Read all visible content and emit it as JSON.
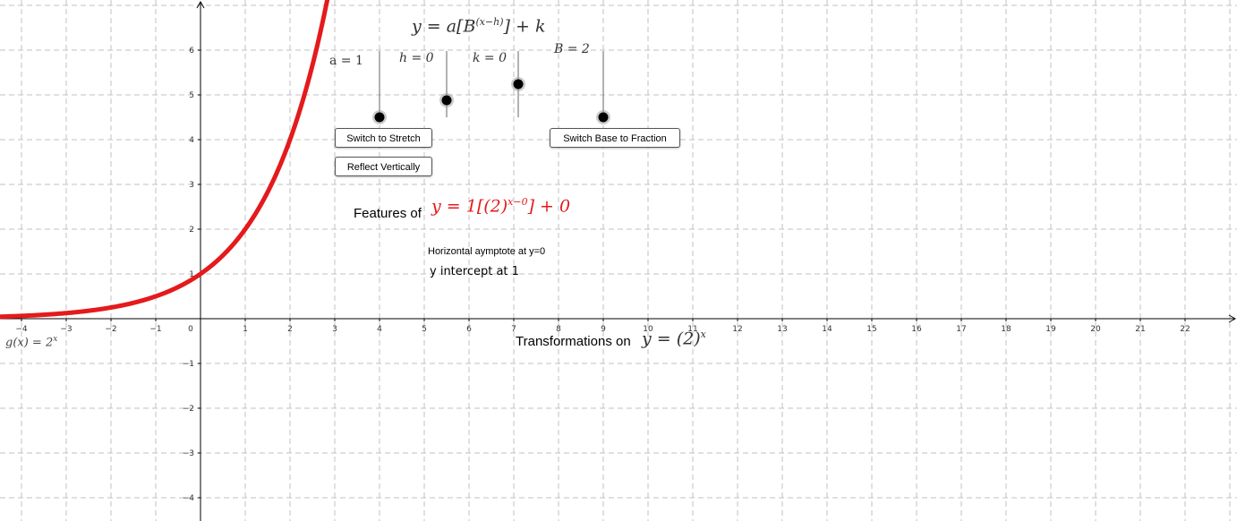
{
  "formula_title": {
    "prefix": "y = a[B",
    "exponent": "(x−h)",
    "suffix": "] + k"
  },
  "sliders": [
    {
      "name": "a",
      "label": "a = 1",
      "value": 1
    },
    {
      "name": "h",
      "label": "h = 0",
      "value": 0
    },
    {
      "name": "k",
      "label": "k = 0",
      "value": 0
    },
    {
      "name": "B",
      "label": "B = 2",
      "value": 2
    }
  ],
  "buttons": {
    "stretch": "Switch to Stretch",
    "reflect": "Reflect Vertically",
    "base_fraction": "Switch Base to Fraction"
  },
  "features": {
    "label": "Features of",
    "eq_prefix": "y = 1[(2)",
    "eq_exponent": "x−0",
    "eq_suffix": "] + 0",
    "asymptote": "Horizontal aymptote at y=0",
    "intercept": "y intercept at 1"
  },
  "transformations": {
    "label": "Transformations on",
    "eq_prefix": "y = (2)",
    "eq_exponent": "x"
  },
  "function_label": {
    "text": "g(x)  =  2",
    "exponent": "x"
  },
  "colors": {
    "curve": "#e41a1c",
    "grid": "#c0c0c0",
    "axis": "#000000",
    "slider_point": "#000000"
  },
  "chart_data": {
    "type": "line",
    "function": "g(x) = 2^x",
    "xlim": [
      -4.5,
      23.1
    ],
    "ylim": [
      -4.5,
      7.1
    ],
    "x_ticks": [
      -4,
      -3,
      -2,
      -1,
      0,
      1,
      2,
      3,
      4,
      5,
      6,
      7,
      8,
      9,
      10,
      11,
      12,
      13,
      14,
      15,
      16,
      17,
      18,
      19,
      20,
      21,
      22
    ],
    "y_ticks": [
      -4,
      -3,
      -2,
      -1,
      1,
      2,
      3,
      4,
      5,
      6
    ],
    "x_tick_labels": [
      "−4",
      "−3",
      "−2",
      "−1",
      "0",
      "1",
      "2",
      "3",
      "4",
      "5",
      "6",
      "7",
      "8",
      "9",
      "10",
      "11",
      "12",
      "13",
      "14",
      "15",
      "16",
      "17",
      "18",
      "19",
      "20",
      "21",
      "22"
    ],
    "y_tick_labels": [
      "−4",
      "−3",
      "−2",
      "−1",
      "1",
      "2",
      "3",
      "4",
      "5",
      "6"
    ],
    "grid": true,
    "grid_style": "dashed"
  }
}
